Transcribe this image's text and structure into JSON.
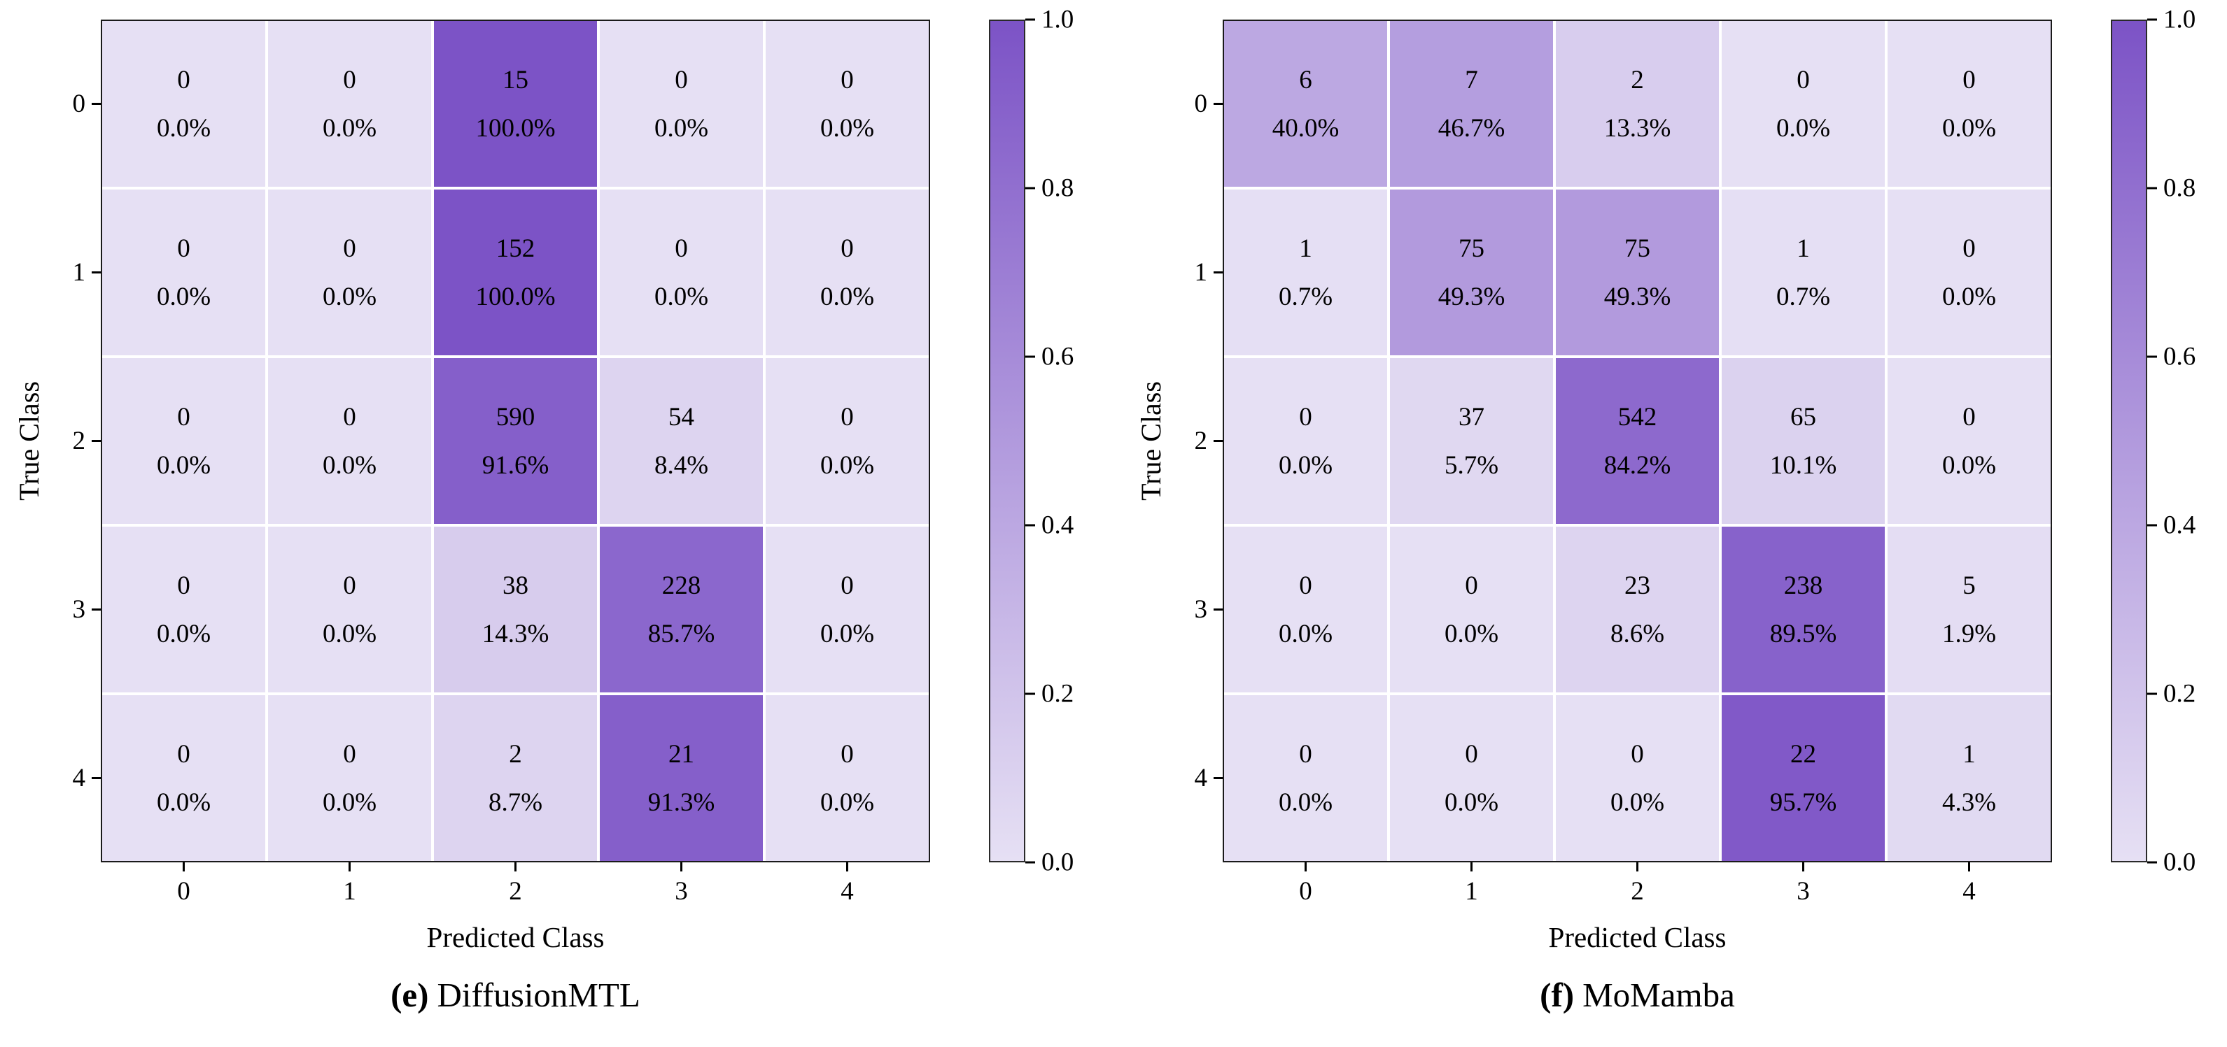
{
  "figure": {
    "background": "#ffffff",
    "color_low": "#e6e0f4",
    "color_high": "#7c53c6",
    "cell_text_color": "#000000",
    "colorbar_ticks": [
      "1.0",
      "0.8",
      "0.6",
      "0.4",
      "0.2",
      "0.0"
    ],
    "panels": [
      {
        "caption_label": "(e)",
        "caption_text": "DiffusionMTL",
        "xlabel": "Predicted Class",
        "ylabel": "True Class",
        "xticks": [
          "0",
          "1",
          "2",
          "3",
          "4"
        ],
        "yticks": [
          "0",
          "1",
          "2",
          "3",
          "4"
        ],
        "cells": [
          [
            {
              "count": "0",
              "pct": "0.0%"
            },
            {
              "count": "0",
              "pct": "0.0%"
            },
            {
              "count": "15",
              "pct": "100.0%"
            },
            {
              "count": "0",
              "pct": "0.0%"
            },
            {
              "count": "0",
              "pct": "0.0%"
            }
          ],
          [
            {
              "count": "0",
              "pct": "0.0%"
            },
            {
              "count": "0",
              "pct": "0.0%"
            },
            {
              "count": "152",
              "pct": "100.0%"
            },
            {
              "count": "0",
              "pct": "0.0%"
            },
            {
              "count": "0",
              "pct": "0.0%"
            }
          ],
          [
            {
              "count": "0",
              "pct": "0.0%"
            },
            {
              "count": "0",
              "pct": "0.0%"
            },
            {
              "count": "590",
              "pct": "91.6%"
            },
            {
              "count": "54",
              "pct": "8.4%"
            },
            {
              "count": "0",
              "pct": "0.0%"
            }
          ],
          [
            {
              "count": "0",
              "pct": "0.0%"
            },
            {
              "count": "0",
              "pct": "0.0%"
            },
            {
              "count": "38",
              "pct": "14.3%"
            },
            {
              "count": "228",
              "pct": "85.7%"
            },
            {
              "count": "0",
              "pct": "0.0%"
            }
          ],
          [
            {
              "count": "0",
              "pct": "0.0%"
            },
            {
              "count": "0",
              "pct": "0.0%"
            },
            {
              "count": "2",
              "pct": "8.7%"
            },
            {
              "count": "21",
              "pct": "91.3%"
            },
            {
              "count": "0",
              "pct": "0.0%"
            }
          ]
        ]
      },
      {
        "caption_label": "(f)",
        "caption_text": "MoMamba",
        "xlabel": "Predicted Class",
        "ylabel": "True Class",
        "xticks": [
          "0",
          "1",
          "2",
          "3",
          "4"
        ],
        "yticks": [
          "0",
          "1",
          "2",
          "3",
          "4"
        ],
        "cells": [
          [
            {
              "count": "6",
              "pct": "40.0%"
            },
            {
              "count": "7",
              "pct": "46.7%"
            },
            {
              "count": "2",
              "pct": "13.3%"
            },
            {
              "count": "0",
              "pct": "0.0%"
            },
            {
              "count": "0",
              "pct": "0.0%"
            }
          ],
          [
            {
              "count": "1",
              "pct": "0.7%"
            },
            {
              "count": "75",
              "pct": "49.3%"
            },
            {
              "count": "75",
              "pct": "49.3%"
            },
            {
              "count": "1",
              "pct": "0.7%"
            },
            {
              "count": "0",
              "pct": "0.0%"
            }
          ],
          [
            {
              "count": "0",
              "pct": "0.0%"
            },
            {
              "count": "37",
              "pct": "5.7%"
            },
            {
              "count": "542",
              "pct": "84.2%"
            },
            {
              "count": "65",
              "pct": "10.1%"
            },
            {
              "count": "0",
              "pct": "0.0%"
            }
          ],
          [
            {
              "count": "0",
              "pct": "0.0%"
            },
            {
              "count": "0",
              "pct": "0.0%"
            },
            {
              "count": "23",
              "pct": "8.6%"
            },
            {
              "count": "238",
              "pct": "89.5%"
            },
            {
              "count": "5",
              "pct": "1.9%"
            }
          ],
          [
            {
              "count": "0",
              "pct": "0.0%"
            },
            {
              "count": "0",
              "pct": "0.0%"
            },
            {
              "count": "0",
              "pct": "0.0%"
            },
            {
              "count": "22",
              "pct": "95.7%"
            },
            {
              "count": "1",
              "pct": "4.3%"
            }
          ]
        ]
      }
    ]
  },
  "chart_data": [
    {
      "type": "heatmap",
      "title": "(e) DiffusionMTL",
      "xlabel": "Predicted Class",
      "ylabel": "True Class",
      "x_categories": [
        "0",
        "1",
        "2",
        "3",
        "4"
      ],
      "y_categories": [
        "0",
        "1",
        "2",
        "3",
        "4"
      ],
      "counts": [
        [
          0,
          0,
          15,
          0,
          0
        ],
        [
          0,
          0,
          152,
          0,
          0
        ],
        [
          0,
          0,
          590,
          54,
          0
        ],
        [
          0,
          0,
          38,
          228,
          0
        ],
        [
          0,
          0,
          2,
          21,
          0
        ]
      ],
      "row_percentages": [
        [
          0.0,
          0.0,
          100.0,
          0.0,
          0.0
        ],
        [
          0.0,
          0.0,
          100.0,
          0.0,
          0.0
        ],
        [
          0.0,
          0.0,
          91.6,
          8.4,
          0.0
        ],
        [
          0.0,
          0.0,
          14.3,
          85.7,
          0.0
        ],
        [
          0.0,
          0.0,
          8.7,
          91.3,
          0.0
        ]
      ],
      "colorbar_range": [
        0.0,
        1.0
      ],
      "colorbar_ticks": [
        1.0,
        0.8,
        0.6,
        0.4,
        0.2,
        0.0
      ],
      "legend_position": "right-colorbar",
      "grid": false
    },
    {
      "type": "heatmap",
      "title": "(f) MoMamba",
      "xlabel": "Predicted Class",
      "ylabel": "True Class",
      "x_categories": [
        "0",
        "1",
        "2",
        "3",
        "4"
      ],
      "y_categories": [
        "0",
        "1",
        "2",
        "3",
        "4"
      ],
      "counts": [
        [
          6,
          7,
          2,
          0,
          0
        ],
        [
          1,
          75,
          75,
          1,
          0
        ],
        [
          0,
          37,
          542,
          65,
          0
        ],
        [
          0,
          0,
          23,
          238,
          5
        ],
        [
          0,
          0,
          0,
          22,
          1
        ]
      ],
      "row_percentages": [
        [
          40.0,
          46.7,
          13.3,
          0.0,
          0.0
        ],
        [
          0.7,
          49.3,
          49.3,
          0.7,
          0.0
        ],
        [
          0.0,
          5.7,
          84.2,
          10.1,
          0.0
        ],
        [
          0.0,
          0.0,
          8.6,
          89.5,
          1.9
        ],
        [
          0.0,
          0.0,
          0.0,
          95.7,
          4.3
        ]
      ],
      "colorbar_range": [
        0.0,
        1.0
      ],
      "colorbar_ticks": [
        1.0,
        0.8,
        0.6,
        0.4,
        0.2,
        0.0
      ],
      "legend_position": "right-colorbar",
      "grid": false
    }
  ]
}
